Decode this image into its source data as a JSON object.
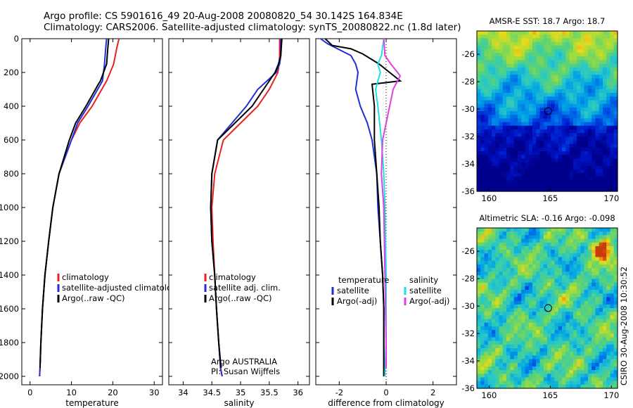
{
  "header": {
    "line1": "Argo profile: CS 5901616_49 20-Aug-2008 20080820_54 30.142S 164.834E",
    "line2": "Climatology: CARS2006. Satellite-adjusted climatology: synTS_20080822.nc (1.8d later)"
  },
  "side_label": "CSIRO 30-Aug-2008 10:30:52",
  "colors": {
    "climatology": "#e8231f",
    "satellite": "#1f2fd6",
    "argo": "#000000",
    "sat_salinity": "#1ee0e0",
    "argo_adj_salinity": "#e040e0"
  },
  "chart_data": [
    {
      "type": "line",
      "name": "temperature-profile",
      "xlabel": "temperature",
      "ylabel": "",
      "xlim": [
        -2,
        32
      ],
      "ylim": [
        2050,
        0
      ],
      "xticks": [
        "0",
        "10",
        "20",
        "30"
      ],
      "xtick_values": [
        0,
        10,
        20,
        30
      ],
      "yticks": [
        "0",
        "200",
        "400",
        "600",
        "800",
        "1000",
        "1200",
        "1400",
        "1600",
        "1800",
        "2000"
      ],
      "ytick_values": [
        0,
        200,
        400,
        600,
        800,
        1000,
        1200,
        1400,
        1600,
        1800,
        2000
      ],
      "legend": [
        "climatology",
        "satellite-adjusted climatology",
        "Argo(..raw -QC)"
      ],
      "legend_position": "lower-right",
      "series": [
        {
          "name": "climatology",
          "color_key": "climatology",
          "x": [
            21.5,
            21,
            20.2,
            18.5,
            15,
            12,
            10,
            7,
            5.5,
            4.5,
            3.6,
            3.0,
            2.6,
            2.4,
            2.3
          ],
          "y": [
            0,
            50,
            150,
            250,
            400,
            500,
            600,
            800,
            1000,
            1200,
            1400,
            1600,
            1800,
            1950,
            2000
          ]
        },
        {
          "name": "satellite-adjusted climatology",
          "color_key": "satellite",
          "x": [
            18.5,
            18.3,
            18,
            17.5,
            14,
            11.5,
            10,
            7,
            5.5,
            4.5,
            3.6,
            3.0,
            2.6,
            2.4,
            2.3
          ],
          "y": [
            0,
            50,
            150,
            250,
            400,
            500,
            600,
            800,
            1000,
            1200,
            1400,
            1600,
            1800,
            1950,
            2000
          ]
        },
        {
          "name": "Argo(..raw -QC)",
          "color_key": "argo",
          "x": [
            19,
            18.8,
            18.5,
            18.2,
            17,
            16.5,
            13.5,
            11,
            9.5,
            7,
            5.5,
            4.5,
            3.6,
            3.0,
            2.6,
            2.4
          ],
          "y": [
            0,
            50,
            150,
            170,
            250,
            270,
            400,
            500,
            600,
            800,
            1000,
            1200,
            1400,
            1600,
            1800,
            1950
          ]
        }
      ]
    },
    {
      "type": "line",
      "name": "salinity-profile",
      "xlabel": "salinity",
      "ylabel": "",
      "xlim": [
        33.75,
        36.2
      ],
      "ylim": [
        2050,
        0
      ],
      "xticks": [
        "34",
        "34.5",
        "35",
        "35.5",
        "36"
      ],
      "xtick_values": [
        34,
        34.5,
        35,
        35.5,
        36
      ],
      "legend": [
        "climatology",
        "satellite adj. clim.",
        "Argo(..raw -QC)"
      ],
      "legend_position": "lower-right",
      "annotation": [
        "Argo AUSTRALIA",
        "PI: Susan Wijffels"
      ],
      "series": [
        {
          "name": "climatology",
          "color_key": "climatology",
          "x": [
            35.68,
            35.68,
            35.67,
            35.65,
            35.5,
            35.3,
            35.0,
            34.7,
            34.55,
            34.5,
            34.52,
            34.55,
            34.58,
            34.62,
            34.65,
            34.68
          ],
          "y": [
            0,
            100,
            150,
            200,
            300,
            400,
            500,
            600,
            800,
            1000,
            1200,
            1400,
            1600,
            1800,
            1950,
            2000
          ]
        },
        {
          "name": "satellite adj. clim.",
          "color_key": "satellite",
          "x": [
            35.7,
            35.7,
            35.68,
            35.62,
            35.3,
            35.1,
            34.85,
            34.6,
            34.5,
            34.48,
            34.5,
            34.55,
            34.58,
            34.62,
            34.65,
            34.68
          ],
          "y": [
            0,
            100,
            150,
            200,
            300,
            400,
            500,
            600,
            800,
            1000,
            1200,
            1400,
            1600,
            1800,
            1950,
            2000
          ]
        },
        {
          "name": "Argo(..raw -QC)",
          "color_key": "argo",
          "x": [
            35.72,
            35.7,
            35.66,
            35.6,
            35.4,
            35.2,
            34.9,
            34.6,
            34.5,
            34.48,
            34.5,
            34.55,
            34.58,
            34.62,
            34.66
          ],
          "y": [
            0,
            100,
            150,
            200,
            300,
            400,
            500,
            600,
            800,
            1000,
            1200,
            1400,
            1600,
            1800,
            1950
          ]
        }
      ]
    },
    {
      "type": "line",
      "name": "difference-profile",
      "xlabel": "difference from climatology",
      "ylabel": "",
      "xlim": [
        -3.0,
        3.0
      ],
      "ylim": [
        2050,
        0
      ],
      "xticks": [
        "-2",
        "0",
        "2"
      ],
      "xtick_values": [
        -2,
        0,
        2
      ],
      "legend_temperature": {
        "heading": "temperature",
        "items": [
          "satellite",
          "Argo(-adj)"
        ]
      },
      "legend_salinity": {
        "heading": "salinity",
        "items": [
          "satellite",
          "Argo(-adj)"
        ]
      },
      "legend_position": "lower-center",
      "series": [
        {
          "name": "temperature satellite",
          "color_key": "satellite",
          "x": [
            -2.8,
            -2.5,
            -1.5,
            -1.3,
            -1.2,
            -1.3,
            -1.1,
            -0.8,
            -0.6,
            -0.4,
            -0.35,
            -0.25,
            -0.15,
            -0.1,
            -0.1
          ],
          "y": [
            0,
            30,
            100,
            150,
            200,
            300,
            400,
            500,
            600,
            800,
            1000,
            1200,
            1400,
            1600,
            2000
          ]
        },
        {
          "name": "temperature Argo(-adj)",
          "color_key": "argo",
          "x": [
            -2.6,
            -2.3,
            -1.5,
            -1.0,
            -0.3,
            0.6,
            -0.6,
            -0.5,
            -0.5,
            -0.4,
            -0.3,
            -0.25,
            -0.15,
            -0.1,
            -0.1
          ],
          "y": [
            0,
            40,
            60,
            90,
            150,
            250,
            270,
            400,
            600,
            800,
            1000,
            1200,
            1400,
            1600,
            2000
          ]
        },
        {
          "name": "salinity satellite",
          "color_key": "sat_salinity",
          "x": [
            -0.1,
            -0.2,
            -0.35,
            -0.25,
            -0.45,
            -0.35,
            -0.2,
            -0.1,
            -0.05,
            0.0,
            0.0,
            -0.05
          ],
          "y": [
            0,
            100,
            150,
            200,
            300,
            400,
            600,
            800,
            1000,
            1400,
            1800,
            2000
          ]
        },
        {
          "name": "salinity Argo(-adj)",
          "color_key": "argo_adj_salinity",
          "x": [
            -0.1,
            -0.05,
            0.2,
            0.6,
            0.3,
            0.15,
            -0.15,
            -0.2,
            -0.1,
            -0.05,
            0.0,
            0.0
          ],
          "y": [
            0,
            100,
            150,
            220,
            300,
            400,
            600,
            800,
            1000,
            1400,
            1800,
            1950
          ]
        }
      ]
    },
    {
      "type": "heatmap",
      "name": "sst-map",
      "title": "AMSR-E SST: 18.7 Argo: 18.7",
      "xlim": [
        159,
        170.5
      ],
      "ylim": [
        -36,
        -24.3
      ],
      "xticks": [
        "160",
        "165",
        "170"
      ],
      "xtick_values": [
        160,
        165,
        170
      ],
      "yticks": [
        "-26",
        "-28",
        "-30",
        "-32",
        "-34",
        "-36"
      ],
      "ytick_values": [
        -26,
        -28,
        -30,
        -32,
        -34,
        -36
      ],
      "marker": {
        "lon": 164.834,
        "lat": -30.142
      }
    },
    {
      "type": "heatmap",
      "name": "sla-map",
      "title": "Altimetric SLA: -0.16 Argo: -0.098",
      "xlim": [
        159,
        170.5
      ],
      "ylim": [
        -36,
        -24.3
      ],
      "xticks": [
        "160",
        "165",
        "170"
      ],
      "xtick_values": [
        160,
        165,
        170
      ],
      "yticks": [
        "-26",
        "-28",
        "-30",
        "-32",
        "-34",
        "-36"
      ],
      "ytick_values": [
        -26,
        -28,
        -30,
        -32,
        -34,
        -36
      ],
      "marker": {
        "lon": 164.834,
        "lat": -30.142
      }
    }
  ]
}
